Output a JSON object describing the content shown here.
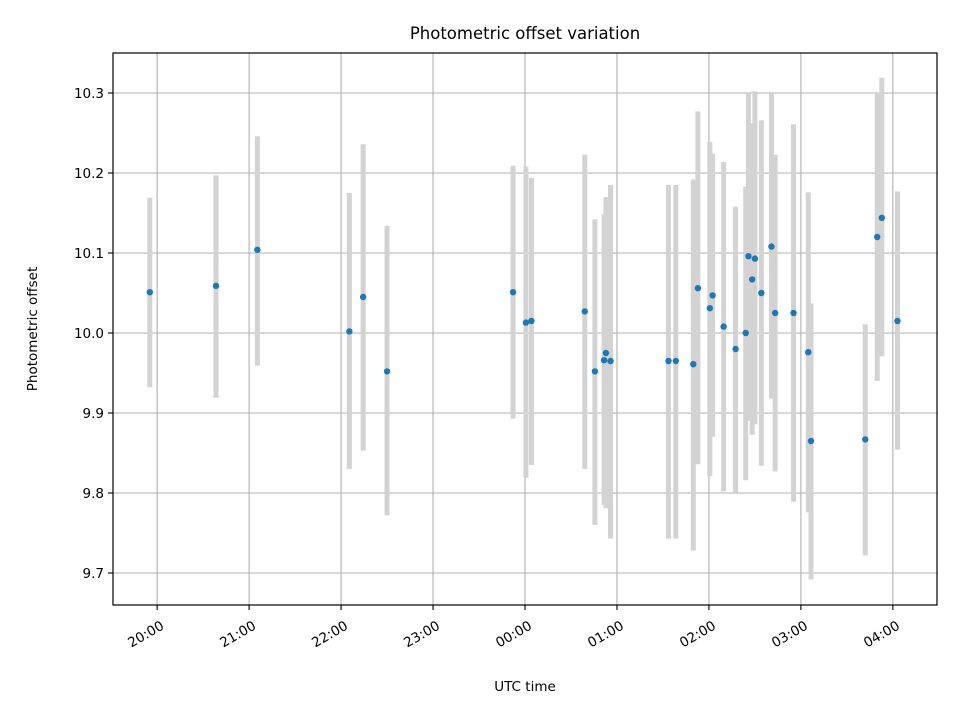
{
  "chart_data": {
    "type": "scatter",
    "title": "Photometric offset variation",
    "xlabel": "UTC time",
    "ylabel": "Photometric offset",
    "x_tick_labels": [
      "20:00",
      "21:00",
      "22:00",
      "23:00",
      "00:00",
      "01:00",
      "02:00",
      "03:00",
      "04:00"
    ],
    "x_ticks_hours": [
      0,
      1,
      2,
      3,
      4,
      5,
      6,
      7,
      8
    ],
    "xlim_hours": [
      -0.48,
      8.48
    ],
    "ylim": [
      9.66,
      10.35
    ],
    "y_ticks": [
      9.7,
      9.8,
      9.9,
      10.0,
      10.1,
      10.2,
      10.3
    ],
    "y_tick_labels": [
      "9.7",
      "9.8",
      "9.9",
      "10.0",
      "10.1",
      "10.2",
      "10.3"
    ],
    "grid": true,
    "errorbar_color": "#d3d3d3",
    "marker_color": "#1f77b4",
    "points": [
      {
        "t": -0.08,
        "y": 10.051,
        "lo": 9.932,
        "hi": 10.169
      },
      {
        "t": 0.64,
        "y": 10.059,
        "lo": 9.919,
        "hi": 10.197
      },
      {
        "t": 1.09,
        "y": 10.104,
        "lo": 9.959,
        "hi": 10.246
      },
      {
        "t": 2.09,
        "y": 10.002,
        "lo": 9.83,
        "hi": 10.175
      },
      {
        "t": 2.24,
        "y": 10.045,
        "lo": 9.853,
        "hi": 10.236
      },
      {
        "t": 2.5,
        "y": 9.952,
        "lo": 9.772,
        "hi": 10.134
      },
      {
        "t": 3.87,
        "y": 10.051,
        "lo": 9.893,
        "hi": 10.209
      },
      {
        "t": 4.01,
        "y": 10.013,
        "lo": 9.819,
        "hi": 10.208
      },
      {
        "t": 4.07,
        "y": 10.015,
        "lo": 9.835,
        "hi": 10.194
      },
      {
        "t": 4.65,
        "y": 10.027,
        "lo": 9.83,
        "hi": 10.223
      },
      {
        "t": 4.76,
        "y": 9.952,
        "lo": 9.76,
        "hi": 10.142
      },
      {
        "t": 4.86,
        "y": 9.966,
        "lo": 9.785,
        "hi": 10.148
      },
      {
        "t": 4.88,
        "y": 9.975,
        "lo": 9.781,
        "hi": 10.17
      },
      {
        "t": 4.93,
        "y": 9.965,
        "lo": 9.743,
        "hi": 10.185
      },
      {
        "t": 5.56,
        "y": 9.965,
        "lo": 9.743,
        "hi": 10.185
      },
      {
        "t": 5.64,
        "y": 9.965,
        "lo": 9.743,
        "hi": 10.185
      },
      {
        "t": 5.83,
        "y": 9.961,
        "lo": 9.728,
        "hi": 10.192
      },
      {
        "t": 5.88,
        "y": 10.056,
        "lo": 9.836,
        "hi": 10.277
      },
      {
        "t": 6.01,
        "y": 10.031,
        "lo": 9.821,
        "hi": 10.239
      },
      {
        "t": 6.04,
        "y": 10.047,
        "lo": 9.87,
        "hi": 10.224
      },
      {
        "t": 6.16,
        "y": 10.008,
        "lo": 9.802,
        "hi": 10.214
      },
      {
        "t": 6.29,
        "y": 9.98,
        "lo": 9.801,
        "hi": 10.158
      },
      {
        "t": 6.4,
        "y": 10.0,
        "lo": 9.816,
        "hi": 10.183
      },
      {
        "t": 6.43,
        "y": 10.096,
        "lo": 9.89,
        "hi": 10.3
      },
      {
        "t": 6.47,
        "y": 10.067,
        "lo": 9.873,
        "hi": 10.262
      },
      {
        "t": 6.5,
        "y": 10.093,
        "lo": 9.886,
        "hi": 10.302
      },
      {
        "t": 6.57,
        "y": 10.05,
        "lo": 9.834,
        "hi": 10.266
      },
      {
        "t": 6.68,
        "y": 10.108,
        "lo": 9.918,
        "hi": 10.3
      },
      {
        "t": 6.72,
        "y": 10.025,
        "lo": 9.827,
        "hi": 10.223
      },
      {
        "t": 6.92,
        "y": 10.025,
        "lo": 9.789,
        "hi": 10.261
      },
      {
        "t": 7.08,
        "y": 9.976,
        "lo": 9.776,
        "hi": 10.176
      },
      {
        "t": 7.11,
        "y": 9.865,
        "lo": 9.692,
        "hi": 10.037
      },
      {
        "t": 7.7,
        "y": 9.867,
        "lo": 9.722,
        "hi": 10.011
      },
      {
        "t": 7.83,
        "y": 10.12,
        "lo": 9.94,
        "hi": 10.3
      },
      {
        "t": 7.88,
        "y": 10.144,
        "lo": 9.971,
        "hi": 10.319
      },
      {
        "t": 8.05,
        "y": 10.015,
        "lo": 9.854,
        "hi": 10.177
      }
    ]
  }
}
